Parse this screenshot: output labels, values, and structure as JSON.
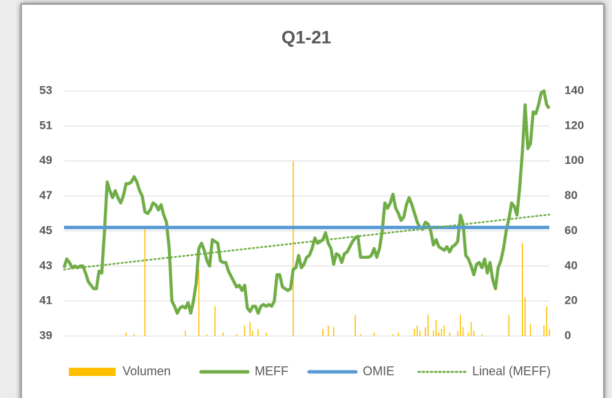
{
  "chart_data": {
    "type": "combo",
    "title": "Q1-21",
    "ylim": [
      39,
      53
    ],
    "yticks": [
      39,
      41,
      43,
      45,
      47,
      49,
      51,
      53
    ],
    "y2lim": [
      0,
      140
    ],
    "y2ticks": [
      0,
      20,
      40,
      60,
      80,
      100,
      120,
      140
    ],
    "grid": true,
    "legend": "bottom",
    "series": [
      {
        "name": "Volumen",
        "type": "bar",
        "axis": "y2",
        "color": "#ffc000",
        "values": [
          0,
          0,
          0,
          0,
          0,
          0,
          0,
          0,
          0,
          0,
          0,
          0,
          0,
          0,
          0,
          0,
          0,
          0,
          0,
          0,
          0,
          0,
          0,
          2,
          0,
          0,
          1,
          0,
          0,
          0,
          62,
          0,
          0,
          0,
          0,
          0,
          0,
          0,
          0,
          0,
          0,
          0,
          0,
          0,
          0,
          3,
          0,
          0,
          0,
          0,
          38,
          0,
          0,
          1,
          0,
          0,
          17,
          0,
          0,
          2,
          0,
          0,
          0,
          0,
          1,
          0,
          0,
          6,
          0,
          8,
          3,
          0,
          4,
          0,
          0,
          2,
          0,
          0,
          0,
          0,
          0,
          0,
          0,
          0,
          0,
          100,
          0,
          0,
          0,
          0,
          0,
          0,
          0,
          0,
          0,
          0,
          4,
          0,
          6,
          0,
          5,
          0,
          0,
          0,
          0,
          0,
          0,
          0,
          12,
          0,
          1,
          0,
          0,
          0,
          0,
          2,
          0,
          0,
          0,
          0,
          0,
          0,
          1,
          0,
          2,
          0,
          0,
          0,
          0,
          0,
          4,
          6,
          3,
          0,
          5,
          12,
          0,
          3,
          9,
          2,
          4,
          6,
          0,
          2,
          0,
          0,
          3,
          12,
          5,
          0,
          2,
          8,
          3,
          0,
          0,
          1,
          0,
          0,
          0,
          0,
          0,
          0,
          0,
          0,
          0,
          12,
          0,
          0,
          0,
          0,
          53,
          22,
          0,
          7,
          0,
          0,
          0,
          0,
          6,
          17,
          4
        ]
      },
      {
        "name": "MEFF",
        "type": "line",
        "color": "#70ad47",
        "values": [
          42.9,
          43.4,
          43.2,
          42.9,
          43.0,
          42.9,
          43.0,
          43.0,
          42.6,
          42.1,
          41.9,
          41.7,
          41.7,
          42.7,
          42.6,
          45.0,
          47.8,
          47.3,
          46.9,
          47.3,
          46.9,
          46.6,
          47.0,
          47.7,
          47.7,
          47.8,
          48.1,
          47.8,
          47.3,
          47.0,
          46.1,
          46.0,
          46.2,
          46.6,
          46.5,
          46.2,
          46.5,
          45.9,
          45.5,
          44.0,
          41.0,
          40.7,
          40.3,
          40.6,
          40.7,
          40.6,
          40.9,
          40.3,
          41.0,
          42.0,
          44.0,
          44.3,
          43.9,
          43.3,
          43.0,
          44.5,
          44.4,
          44.3,
          43.3,
          43.2,
          43.2,
          42.7,
          42.4,
          42.1,
          41.8,
          41.9,
          41.6,
          41.9,
          40.6,
          40.4,
          40.7,
          40.7,
          40.3,
          40.7,
          40.8,
          40.7,
          40.8,
          40.7,
          41.0,
          42.5,
          42.5,
          41.8,
          41.7,
          41.6,
          41.7,
          42.8,
          42.9,
          43.6,
          42.9,
          43.1,
          43.5,
          43.6,
          44.0,
          44.6,
          44.3,
          44.4,
          44.5,
          44.9,
          44.3,
          44.0,
          43.1,
          43.7,
          43.6,
          43.2,
          43.7,
          43.8,
          44.1,
          44.4,
          44.6,
          44.7,
          43.5,
          43.5,
          43.5,
          43.5,
          43.6,
          44.0,
          43.5,
          44.0,
          45.0,
          46.6,
          46.3,
          46.6,
          47.1,
          46.3,
          46.0,
          45.6,
          45.8,
          46.5,
          46.9,
          46.5,
          46.0,
          45.5,
          45.2,
          45.1,
          45.5,
          45.4,
          45.0,
          44.2,
          44.5,
          44.1,
          44.0,
          43.9,
          44.1,
          43.8,
          44.1,
          44.2,
          44.4,
          45.9,
          45.4,
          43.6,
          43.4,
          43.0,
          42.5,
          43.1,
          43.2,
          42.9,
          43.4,
          42.6,
          43.2,
          42.2,
          41.7,
          42.9,
          43.3,
          44.0,
          45.0,
          45.7,
          46.6,
          46.4,
          45.9,
          47.5,
          49.5,
          52.2,
          49.7,
          50.0,
          51.8,
          51.7,
          52.2,
          52.9,
          53.0,
          52.2,
          52.0
        ]
      },
      {
        "name": "OMIE",
        "type": "hline",
        "color": "#5b9bd5",
        "value": 45.2
      }
    ],
    "trendline": {
      "name": "Lineal (MEFF)",
      "series": 1,
      "fit": "linear",
      "color": "#70ad47"
    }
  }
}
